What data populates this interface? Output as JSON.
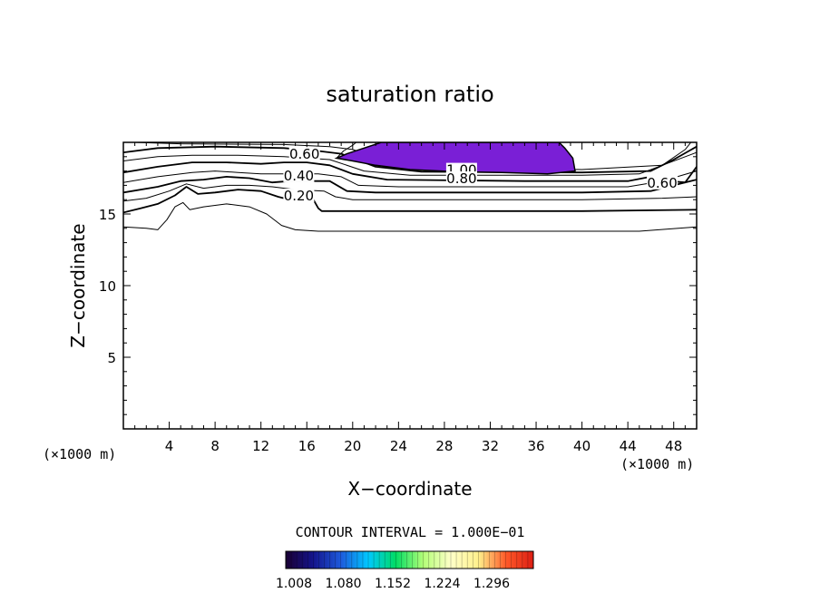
{
  "chart_data": {
    "type": "contour",
    "title": "saturation ratio",
    "xlabel": "X−coordinate",
    "ylabel": "Z−coordinate",
    "x_unit_label": "(×1000 m)",
    "y_unit_label": "(×1000 m)",
    "xlim": [
      0,
      50
    ],
    "ylim": [
      0,
      20
    ],
    "x_ticks": [
      4,
      8,
      12,
      16,
      20,
      24,
      28,
      32,
      36,
      40,
      44,
      48
    ],
    "y_ticks": [
      5,
      10,
      15
    ],
    "contour_interval_text": "CONTOUR INTERVAL = 1.000E−01",
    "contour_labels": [
      {
        "text": "0.60",
        "x": 15.8,
        "z": 19.1
      },
      {
        "text": "0.40",
        "x": 15.3,
        "z": 17.6
      },
      {
        "text": "0.20",
        "x": 15.3,
        "z": 16.2
      },
      {
        "text": "1.00",
        "x": 29.5,
        "z": 18.0
      },
      {
        "text": "0.80",
        "x": 29.5,
        "z": 17.4
      },
      {
        "text": "0.60",
        "x": 47.0,
        "z": 17.1
      }
    ],
    "colorbar_ticks": [
      "1.008",
      "1.080",
      "1.152",
      "1.224",
      "1.296"
    ],
    "colorbar_colors": [
      "#1a0033",
      "#14148c",
      "#1e5adc",
      "#00c8ff",
      "#00dc64",
      "#b4ff78",
      "#ffffc8",
      "#fff08c",
      "#ff5a28",
      "#dc1e14"
    ],
    "supersaturation_fill_color": "#7a1fd6"
  }
}
